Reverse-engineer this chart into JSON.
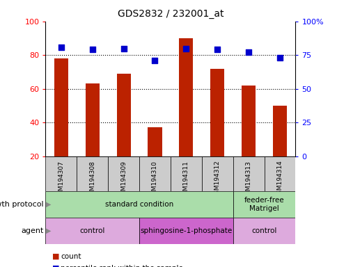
{
  "title": "GDS2832 / 232001_at",
  "samples": [
    "GSM194307",
    "GSM194308",
    "GSM194309",
    "GSM194310",
    "GSM194311",
    "GSM194312",
    "GSM194313",
    "GSM194314"
  ],
  "counts": [
    78,
    63,
    69,
    37,
    90,
    72,
    62,
    50
  ],
  "percentile_ranks": [
    81,
    79,
    80,
    71,
    80,
    79,
    77,
    73
  ],
  "ylim_left": [
    20,
    100
  ],
  "yticks_left": [
    20,
    40,
    60,
    80,
    100
  ],
  "yticks_right": [
    0,
    25,
    50,
    75,
    100
  ],
  "ytick_labels_right": [
    "0",
    "25",
    "50",
    "75",
    "100%"
  ],
  "bar_color": "#bb2200",
  "dot_color": "#0000cc",
  "growth_protocol_row": {
    "label": "growth protocol",
    "groups": [
      {
        "text": "standard condition",
        "start": 0,
        "end": 6,
        "color": "#aaddaa"
      },
      {
        "text": "feeder-free\nMatrigel",
        "start": 6,
        "end": 8,
        "color": "#aaddaa"
      }
    ]
  },
  "agent_row": {
    "label": "agent",
    "groups": [
      {
        "text": "control",
        "start": 0,
        "end": 3,
        "color": "#ddaadd"
      },
      {
        "text": "sphingosine-1-phosphate",
        "start": 3,
        "end": 6,
        "color": "#cc66cc"
      },
      {
        "text": "control",
        "start": 6,
        "end": 8,
        "color": "#ddaadd"
      }
    ]
  },
  "bar_width": 0.45,
  "dot_size": 28,
  "fig_width": 4.85,
  "fig_height": 3.84,
  "dpi": 100
}
